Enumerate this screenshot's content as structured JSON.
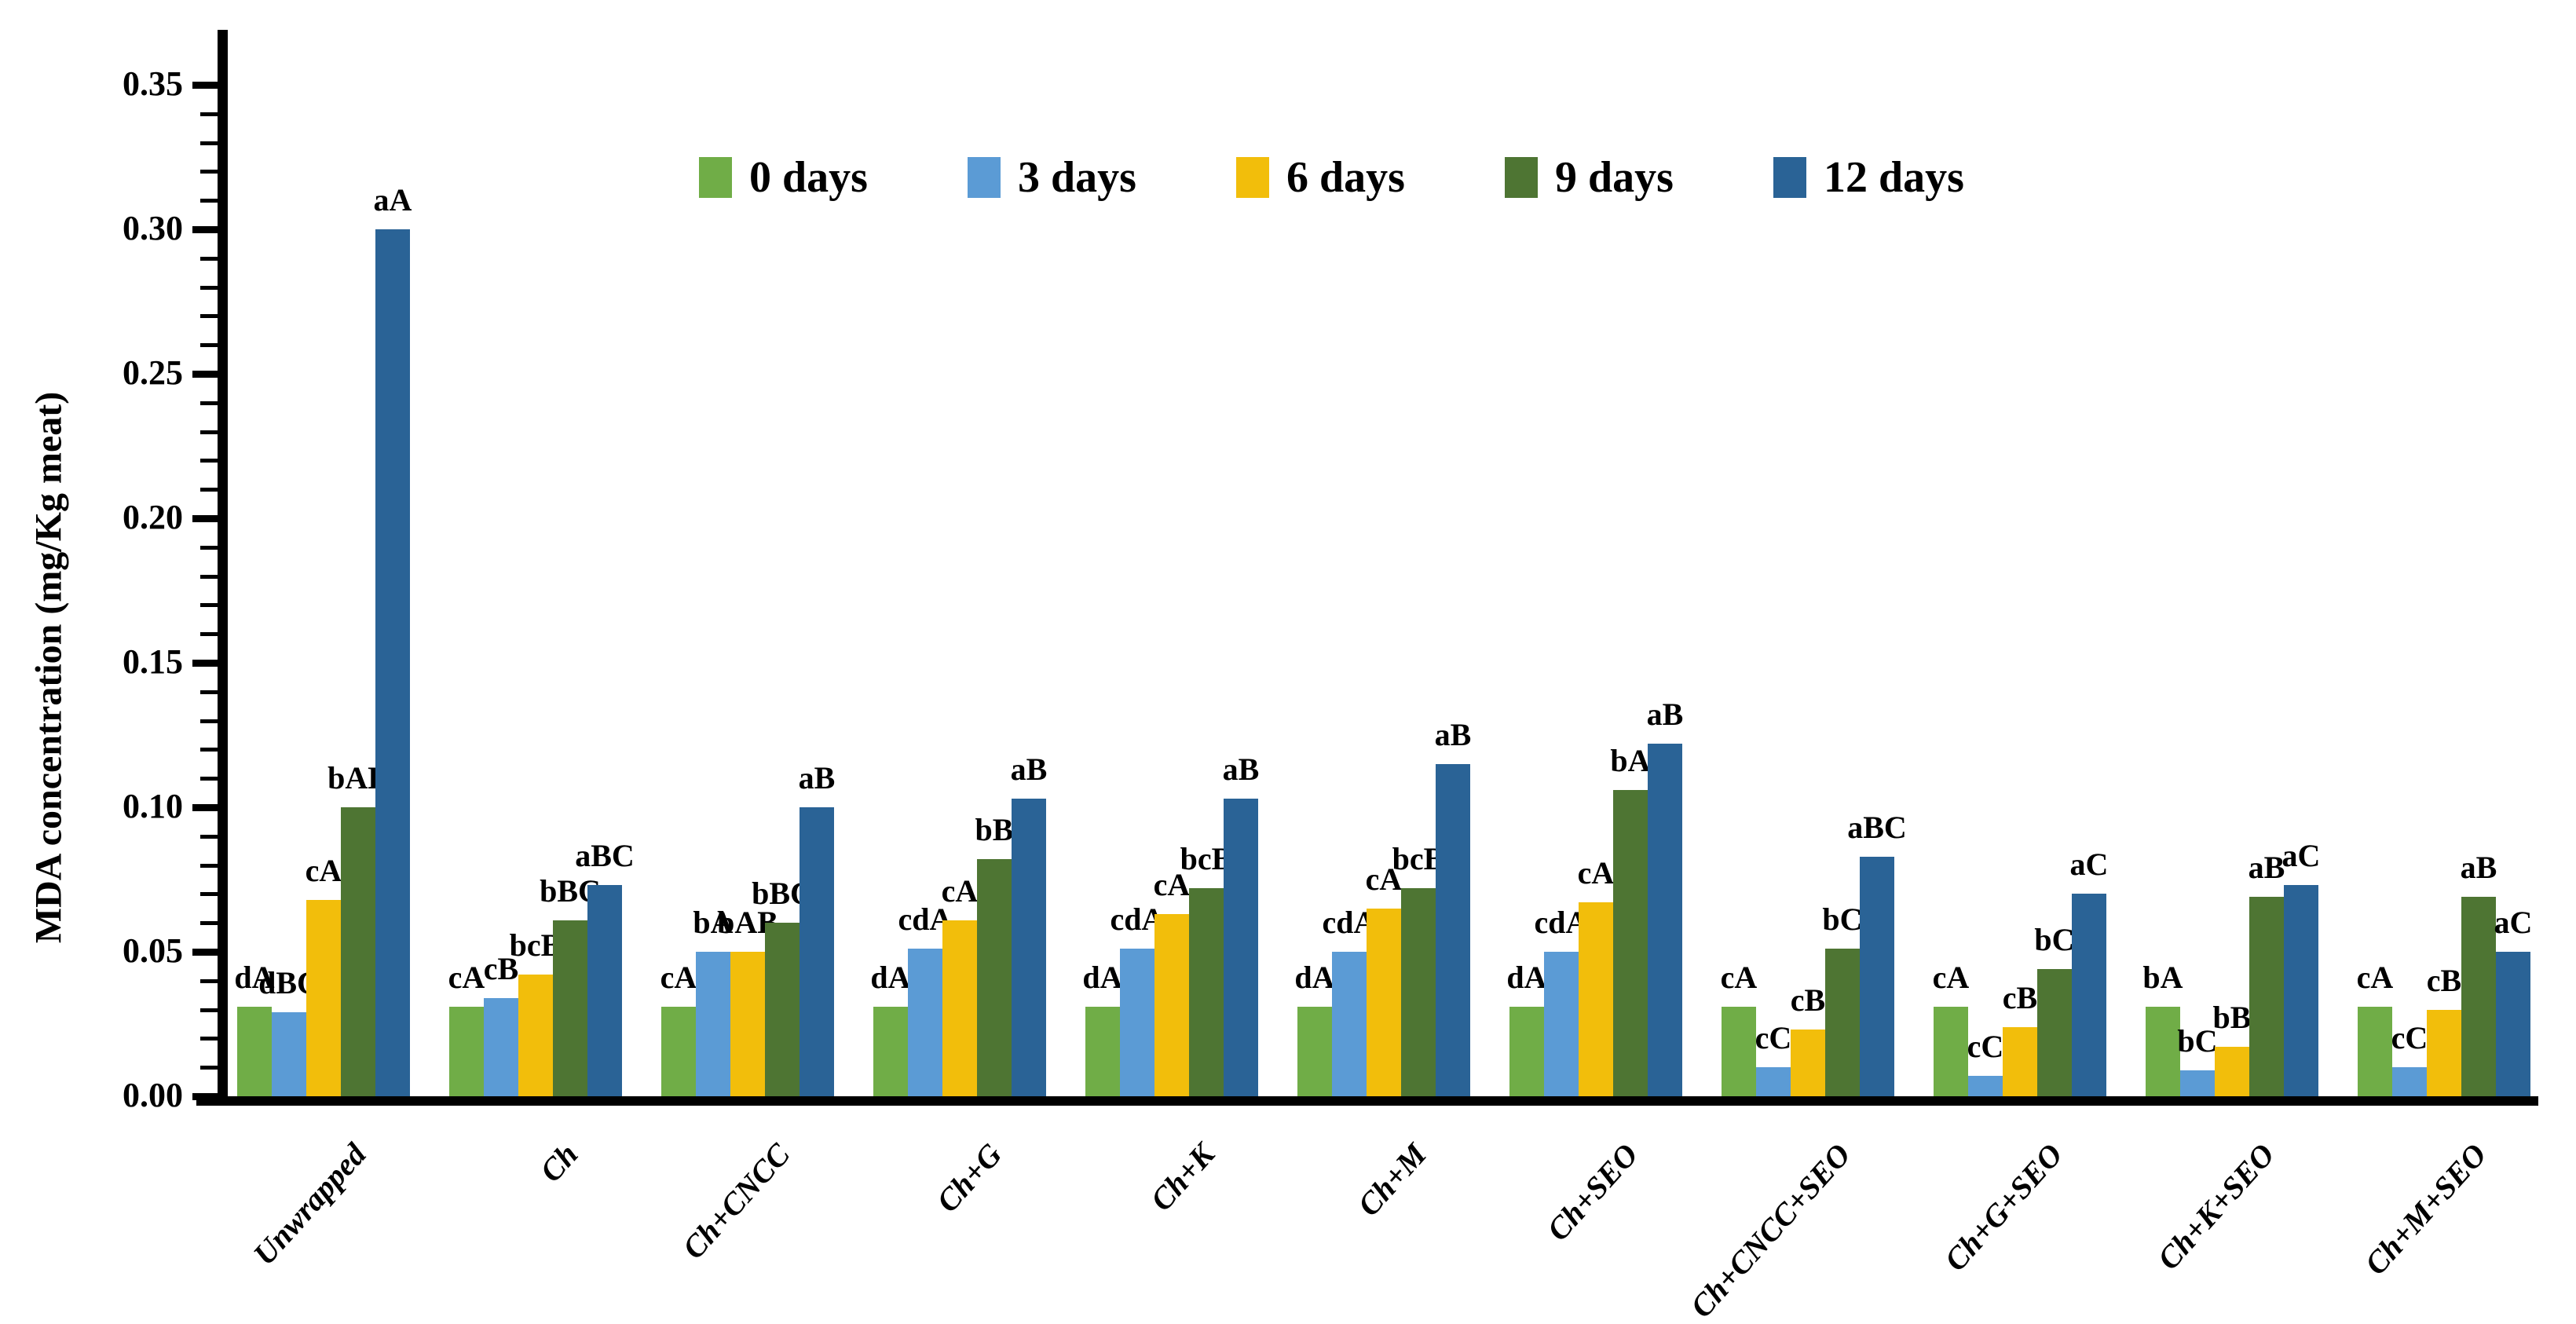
{
  "chart_data": {
    "type": "bar",
    "title": "",
    "xlabel": "",
    "ylabel": "MDA concentration (mg/Kg meat)",
    "ylim": [
      0,
      0.37
    ],
    "ytick_step": 0.05,
    "ytick_minor_step": 0.01,
    "ytick_labels": [
      "0.00",
      "0.05",
      "0.10",
      "0.15",
      "0.20",
      "0.25",
      "0.30",
      "0.35"
    ],
    "grid": false,
    "legend_position": "top-center",
    "categories": [
      "Unwrapped",
      "Ch",
      "Ch+CNCC",
      "Ch+G",
      "Ch+K",
      "Ch+M",
      "Ch+SEO",
      "Ch+CNCC+SEO",
      "Ch+G+SEO",
      "Ch+K+SEO",
      "Ch+M+SEO"
    ],
    "series": [
      {
        "name": "0 days",
        "color": "#70AD47",
        "values": [
          0.031,
          0.031,
          0.031,
          0.031,
          0.031,
          0.031,
          0.031,
          0.031,
          0.031,
          0.031,
          0.031
        ],
        "labels": [
          "dA",
          "cA",
          "cA",
          "dA",
          "dA",
          "dA",
          "dA",
          "cA",
          "cA",
          "bA",
          "cA"
        ]
      },
      {
        "name": "3 days",
        "color": "#5B9BD5",
        "values": [
          0.029,
          0.034,
          0.05,
          0.051,
          0.051,
          0.05,
          0.05,
          0.01,
          0.007,
          0.009,
          0.01
        ],
        "labels": [
          "dBC",
          "cB",
          "bA",
          "cdA",
          "cdA",
          "cdA",
          "cdA",
          "cC",
          "cC",
          "bC",
          "cC"
        ]
      },
      {
        "name": "6 days",
        "color": "#F2BE0B",
        "values": [
          0.068,
          0.042,
          0.05,
          0.061,
          0.063,
          0.065,
          0.067,
          0.023,
          0.024,
          0.017,
          0.03
        ],
        "labels": [
          "cA",
          "bcB",
          "bAB",
          "cA",
          "cA",
          "cA",
          "cA",
          "cB",
          "cB",
          "bB",
          "cB"
        ]
      },
      {
        "name": "9 days",
        "color": "#4E7533",
        "values": [
          0.1,
          0.061,
          0.06,
          0.082,
          0.072,
          0.072,
          0.106,
          0.051,
          0.044,
          0.069,
          0.069
        ],
        "labels": [
          "bAB",
          "bBC",
          "bBC",
          "bB",
          "bcB",
          "bcB",
          "bA",
          "bC",
          "bC",
          "aB",
          "aB"
        ]
      },
      {
        "name": "12 days",
        "color": "#2A6396",
        "values": [
          0.3,
          0.073,
          0.1,
          0.103,
          0.103,
          0.115,
          0.122,
          0.083,
          0.07,
          0.073,
          0.05
        ],
        "labels": [
          "aA",
          "aBC",
          "aB",
          "aB",
          "aB",
          "aB",
          "aB",
          "aBC",
          "aC",
          "aC",
          "aC"
        ]
      }
    ]
  }
}
